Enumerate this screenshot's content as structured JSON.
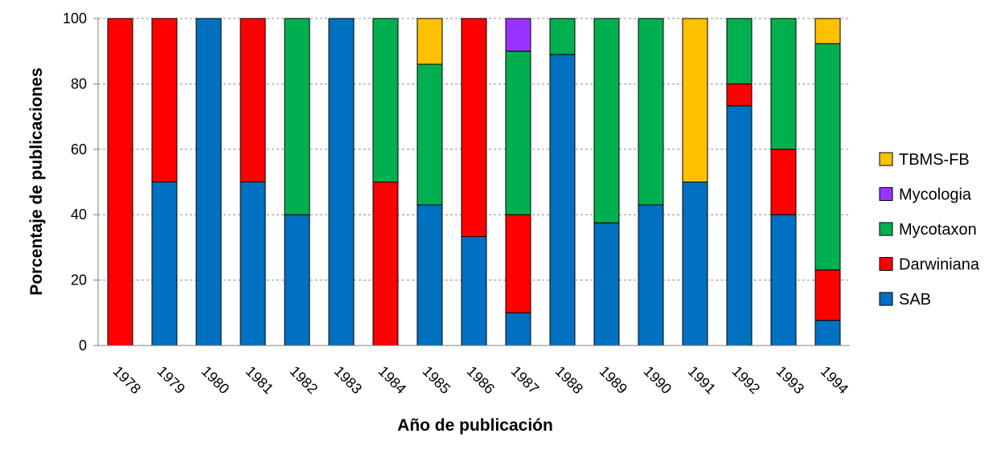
{
  "chart_data": {
    "type": "bar",
    "stacked": true,
    "percent": true,
    "title": "",
    "xlabel": "Año de publicación",
    "ylabel": "Porcentaje de publicaciones",
    "ylim": [
      0,
      100
    ],
    "yticks": [
      0,
      20,
      40,
      60,
      80,
      100
    ],
    "grid": "horizontal-dashed",
    "legend_position": "right",
    "categories": [
      "1978",
      "1979",
      "1980",
      "1981",
      "1982",
      "1983",
      "1984",
      "1985",
      "1986",
      "1987",
      "1988",
      "1989",
      "1990",
      "1991",
      "1992",
      "1993",
      "1994"
    ],
    "series": [
      {
        "name": "SAB",
        "color": "#0070C0",
        "values": [
          0,
          50,
          100,
          50,
          40,
          100,
          0,
          43,
          33.3,
          10,
          89,
          37.5,
          43,
          50,
          73.3,
          40,
          7.7
        ]
      },
      {
        "name": "Darwiniana",
        "color": "#FF0000",
        "values": [
          100,
          50,
          0,
          50,
          0,
          0,
          50,
          0,
          66.7,
          30,
          0,
          0,
          0,
          0,
          6.7,
          20,
          15.4
        ]
      },
      {
        "name": "Mycotaxon",
        "color": "#00B050",
        "values": [
          0,
          0,
          0,
          0,
          60,
          0,
          50,
          43,
          0,
          50,
          11,
          62.5,
          57,
          0,
          20,
          40,
          69.2
        ]
      },
      {
        "name": "Mycologia",
        "color": "#9933FF",
        "values": [
          0,
          0,
          0,
          0,
          0,
          0,
          0,
          0,
          0,
          10,
          0,
          0,
          0,
          0,
          0,
          0,
          0
        ]
      },
      {
        "name": "TBMS-FB",
        "color": "#FFC000",
        "values": [
          0,
          0,
          0,
          0,
          0,
          0,
          0,
          14,
          0,
          0,
          0,
          0,
          0,
          50,
          0,
          0,
          7.7
        ]
      }
    ],
    "legend_order": [
      "TBMS-FB",
      "Mycologia",
      "Mycotaxon",
      "Darwiniana",
      "SAB"
    ]
  }
}
